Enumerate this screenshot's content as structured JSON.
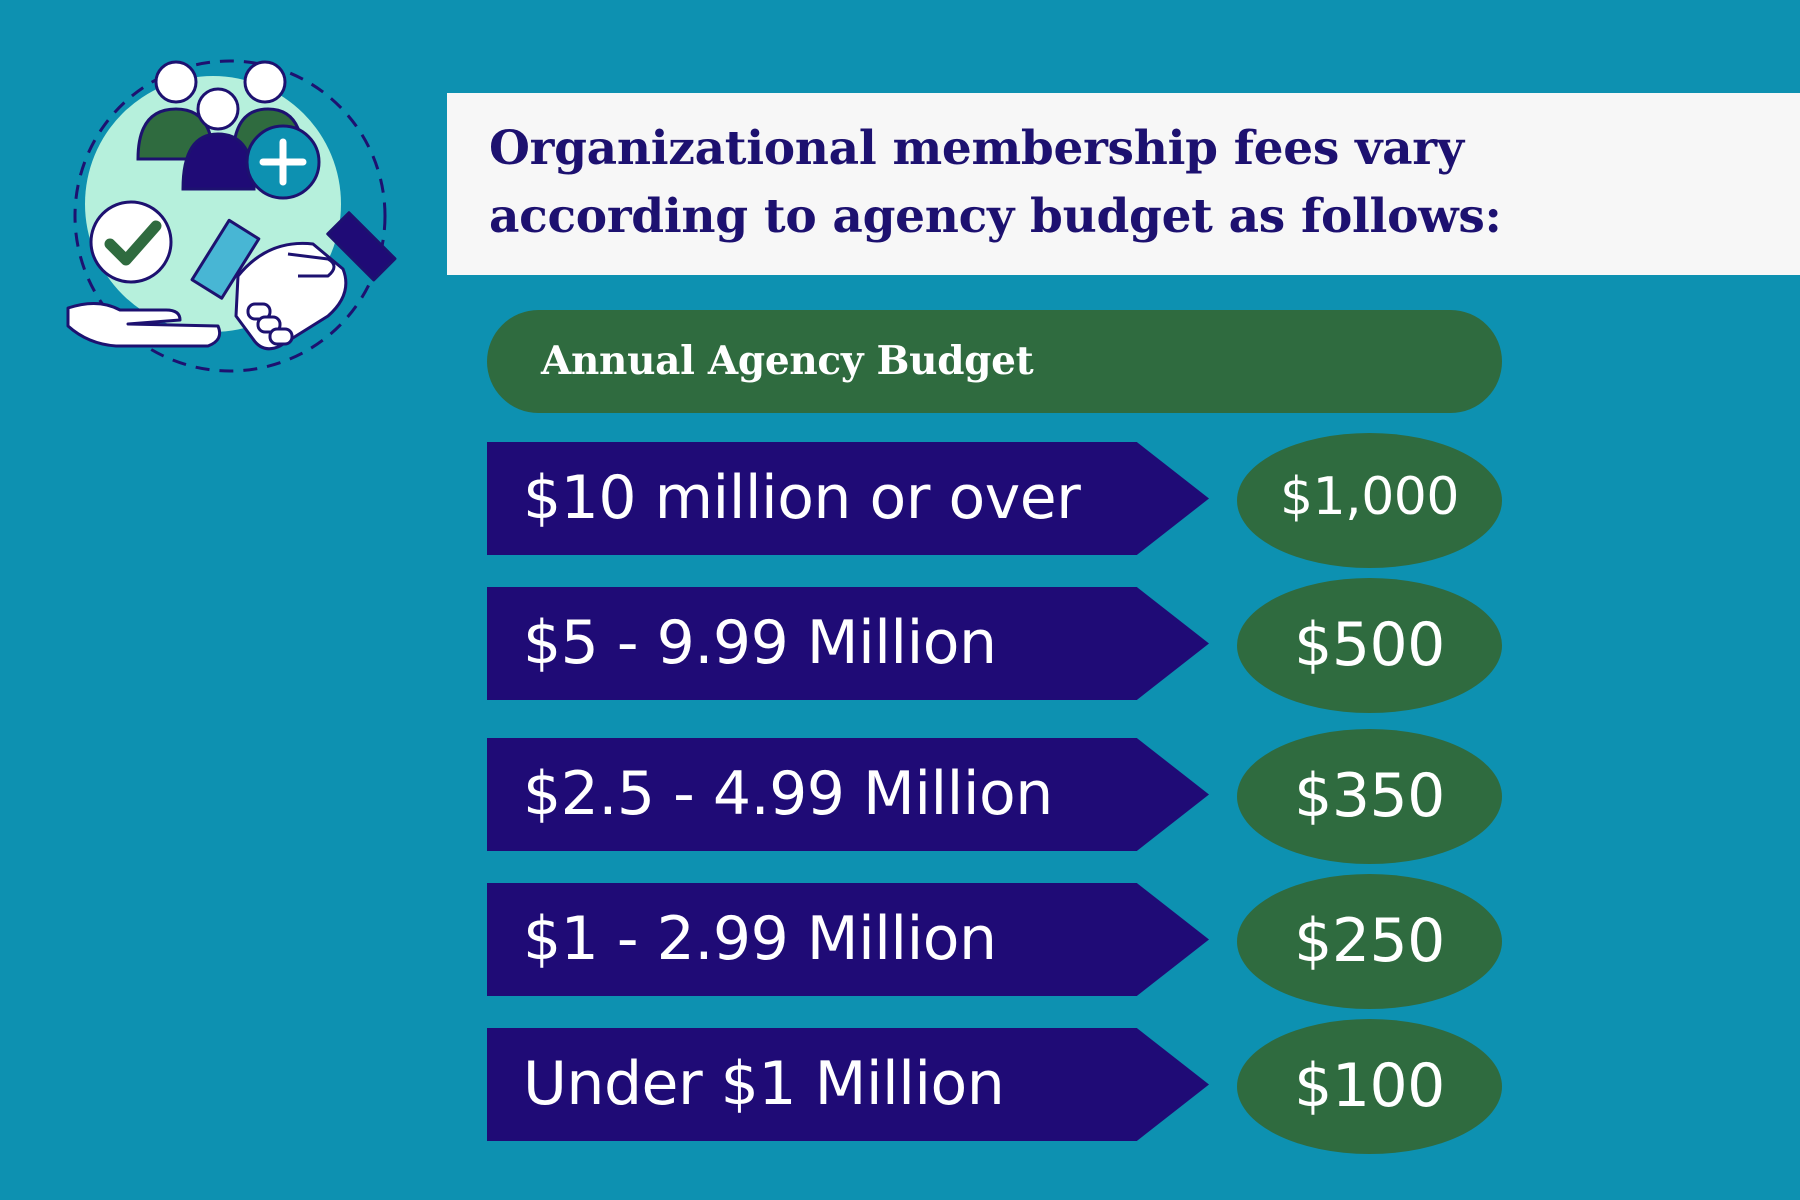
{
  "headline": {
    "line1": "Organizational membership fees vary",
    "line2": "according to agency budget as follows:"
  },
  "budget_header": "Annual Agency Budget",
  "tiers": [
    {
      "budget": "$10 million or over",
      "fee": "$1,000"
    },
    {
      "budget": "$5 - 9.99 Million",
      "fee": "$500"
    },
    {
      "budget": "$2.5 - 4.99 Million",
      "fee": "$350"
    },
    {
      "budget": "$1 - 2.99 Million",
      "fee": "$250"
    },
    {
      "budget": "Under $1 Million",
      "fee": "$100"
    }
  ],
  "icon": {
    "name": "membership-handshake-icon"
  },
  "colors": {
    "background": "#0d91b1",
    "navy": "#1f0b76",
    "green": "#2f6b3f",
    "mint": "#b6f0dc",
    "white": "#f7f7f7"
  }
}
